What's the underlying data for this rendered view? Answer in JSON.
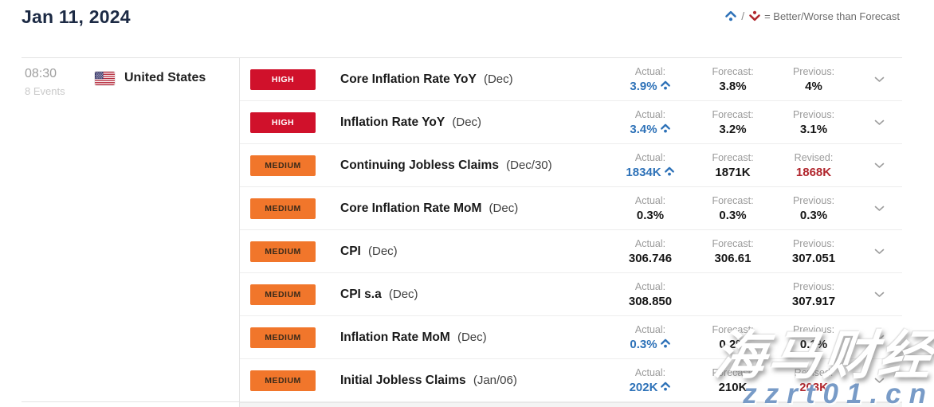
{
  "header": {
    "date_title": "Jan 11, 2024",
    "legend_separator": "/",
    "legend_text": "= Better/Worse than Forecast"
  },
  "group": {
    "time": "08:30",
    "events_count": "8 Events",
    "country": "United States"
  },
  "icons": {
    "better_icon": "chevron-up-dot (blue)",
    "worse_icon": "chevron-down-dot (red)",
    "expand_icon": "chevron-down",
    "flag_icon": "us-flag"
  },
  "colors": {
    "accent_blue": "#2e72b8",
    "high_red": "#d0112b",
    "medium_orange": "#f1762b",
    "revised_red": "#b1272e",
    "title_navy": "#1c2a44"
  },
  "watermark": {
    "line1": "海马财经",
    "line2": "zzrt01.cn"
  },
  "rows": [
    {
      "importance": "HIGH",
      "name": "Core Inflation Rate YoY",
      "period": "(Dec)",
      "actual": {
        "label": "Actual:",
        "value": "3.9%",
        "better": true
      },
      "forecast": {
        "label": "Forecast:",
        "value": "3.8%"
      },
      "previous": {
        "label": "Previous:",
        "value": "4%"
      }
    },
    {
      "importance": "HIGH",
      "name": "Inflation Rate YoY",
      "period": "(Dec)",
      "actual": {
        "label": "Actual:",
        "value": "3.4%",
        "better": true
      },
      "forecast": {
        "label": "Forecast:",
        "value": "3.2%"
      },
      "previous": {
        "label": "Previous:",
        "value": "3.1%"
      }
    },
    {
      "importance": "MEDIUM",
      "name": "Continuing Jobless Claims",
      "period": "(Dec/30)",
      "actual": {
        "label": "Actual:",
        "value": "1834K",
        "better": true
      },
      "forecast": {
        "label": "Forecast:",
        "value": "1871K"
      },
      "previous": {
        "label": "Revised:",
        "value": "1868K",
        "revised": true
      }
    },
    {
      "importance": "MEDIUM",
      "name": "Core Inflation Rate MoM",
      "period": "(Dec)",
      "actual": {
        "label": "Actual:",
        "value": "0.3%"
      },
      "forecast": {
        "label": "Forecast:",
        "value": "0.3%"
      },
      "previous": {
        "label": "Previous:",
        "value": "0.3%"
      }
    },
    {
      "importance": "MEDIUM",
      "name": "CPI",
      "period": "(Dec)",
      "actual": {
        "label": "Actual:",
        "value": "306.746"
      },
      "forecast": {
        "label": "Forecast:",
        "value": "306.61"
      },
      "previous": {
        "label": "Previous:",
        "value": "307.051"
      }
    },
    {
      "importance": "MEDIUM",
      "name": "CPI s.a",
      "period": "(Dec)",
      "actual": {
        "label": "Actual:",
        "value": "308.850"
      },
      "forecast": null,
      "previous": {
        "label": "Previous:",
        "value": "307.917"
      }
    },
    {
      "importance": "MEDIUM",
      "name": "Inflation Rate MoM",
      "period": "(Dec)",
      "actual": {
        "label": "Actual:",
        "value": "0.3%",
        "better": true
      },
      "forecast": {
        "label": "Forecast:",
        "value": "0.2%"
      },
      "previous": {
        "label": "Previous:",
        "value": "0.1%"
      }
    },
    {
      "importance": "MEDIUM",
      "name": "Initial Jobless Claims",
      "period": "(Jan/06)",
      "actual": {
        "label": "Actual:",
        "value": "202K",
        "better": true
      },
      "forecast": {
        "label": "Forecast:",
        "value": "210K"
      },
      "previous": {
        "label": "Revised:",
        "value": "203K",
        "revised": true
      }
    }
  ]
}
